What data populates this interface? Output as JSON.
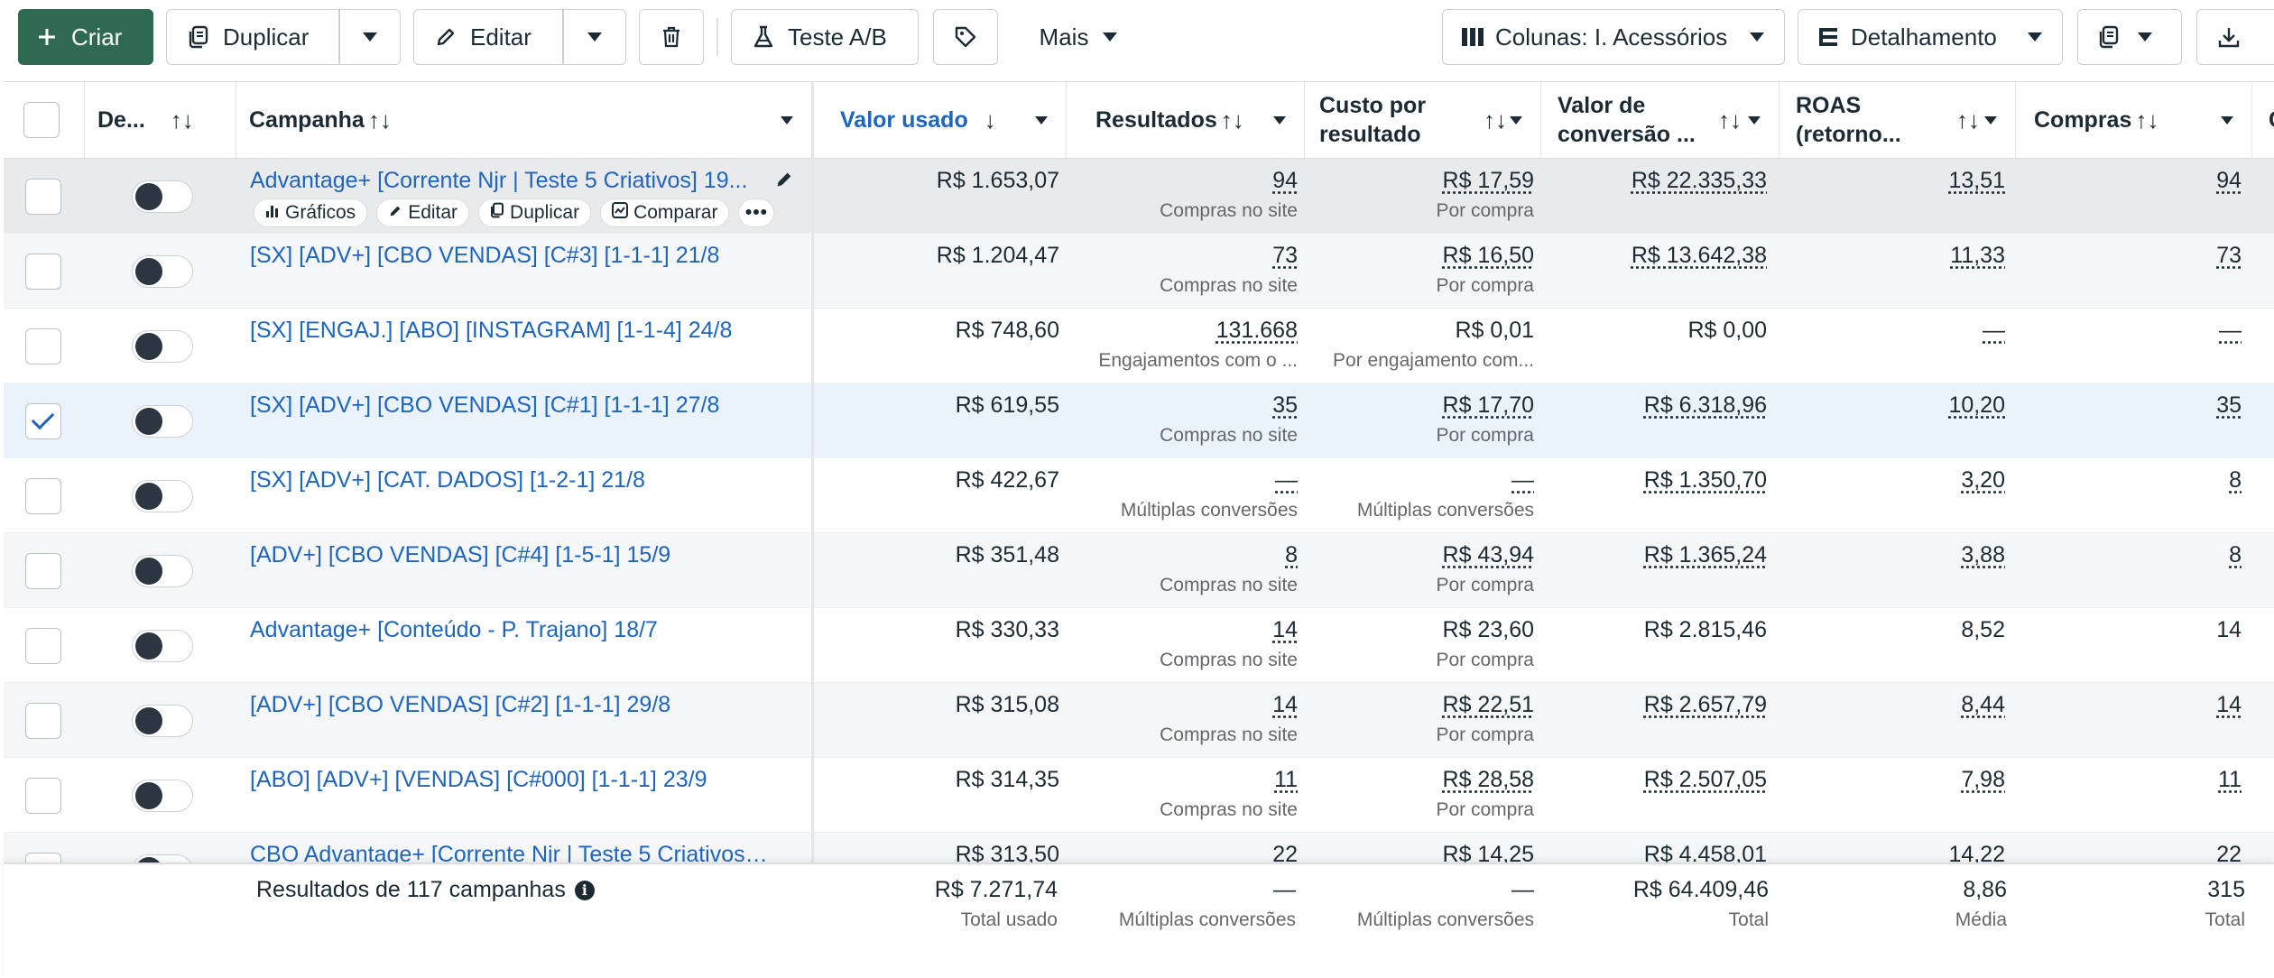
{
  "toolbar": {
    "create_label": "Criar",
    "duplicate_label": "Duplicar",
    "edit_label": "Editar",
    "ab_test_label": "Teste A/B",
    "more_label": "Mais",
    "columns_label": "Colunas: I. Acessórios",
    "breakdown_label": "Detalhamento"
  },
  "columns": {
    "delivery": "De...",
    "campaign": "Campanha",
    "amount_spent": "Valor usado",
    "results": "Resultados",
    "cost_per_result_1": "Custo por",
    "cost_per_result_2": "resultado",
    "conv_value_1": "Valor de",
    "conv_value_2": "conversão ...",
    "roas_1": "ROAS",
    "roas_2": "(retorno...",
    "purchases": "Compras",
    "next_partial": "C"
  },
  "row_actions": {
    "charts": "Gráficos",
    "edit": "Editar",
    "duplicate": "Duplicar",
    "compare": "Comparar"
  },
  "rows": [
    {
      "name": "Advantage+ [Corrente Njr | Teste 5 Criativos] 19...",
      "spent": "R$ 1.653,07",
      "results": "94",
      "results_sub": "Compras no site",
      "cpr": "R$ 17,59",
      "cpr_sub": "Por compra",
      "conv": "R$ 22.335,33",
      "roas": "13,51",
      "purchases": "94"
    },
    {
      "name": "[SX] [ADV+] [CBO VENDAS] [C#3] [1-1-1] 21/8",
      "spent": "R$ 1.204,47",
      "results": "73",
      "results_sub": "Compras no site",
      "cpr": "R$ 16,50",
      "cpr_sub": "Por compra",
      "conv": "R$ 13.642,38",
      "roas": "11,33",
      "purchases": "73"
    },
    {
      "name": "[SX] [ENGAJ.] [ABO] [INSTAGRAM] [1-1-4] 24/8",
      "spent": "R$ 748,60",
      "results": "131.668",
      "results_sub": "Engajamentos com o ...",
      "cpr": "R$ 0,01",
      "cpr_sub": "Por engajamento com...",
      "conv": "R$ 0,00",
      "roas": "—",
      "purchases": "—"
    },
    {
      "name": "[SX] [ADV+] [CBO VENDAS] [C#1] [1-1-1] 27/8",
      "spent": "R$ 619,55",
      "results": "35",
      "results_sub": "Compras no site",
      "cpr": "R$ 17,70",
      "cpr_sub": "Por compra",
      "conv": "R$ 6.318,96",
      "roas": "10,20",
      "purchases": "35"
    },
    {
      "name": "[SX] [ADV+] [CAT. DADOS] [1-2-1] 21/8",
      "spent": "R$ 422,67",
      "results": "—",
      "results_sub": "Múltiplas conversões",
      "cpr": "—",
      "cpr_sub": "Múltiplas conversões",
      "conv": "R$ 1.350,70",
      "roas": "3,20",
      "purchases": "8"
    },
    {
      "name": "[ADV+] [CBO VENDAS] [C#4] [1-5-1] 15/9",
      "spent": "R$ 351,48",
      "results": "8",
      "results_sub": "Compras no site",
      "cpr": "R$ 43,94",
      "cpr_sub": "Por compra",
      "conv": "R$ 1.365,24",
      "roas": "3,88",
      "purchases": "8"
    },
    {
      "name": "Advantage+ [Conteúdo - P. Trajano] 18/7",
      "spent": "R$ 330,33",
      "results": "14",
      "results_sub": "Compras no site",
      "cpr": "R$ 23,60",
      "cpr_sub": "Por compra",
      "conv": "R$ 2.815,46",
      "roas": "8,52",
      "purchases": "14"
    },
    {
      "name": "[ADV+] [CBO VENDAS] [C#2] [1-1-1] 29/8",
      "spent": "R$ 315,08",
      "results": "14",
      "results_sub": "Compras no site",
      "cpr": "R$ 22,51",
      "cpr_sub": "Por compra",
      "conv": "R$ 2.657,79",
      "roas": "8,44",
      "purchases": "14"
    },
    {
      "name": "[ABO] [ADV+] [VENDAS] [C#000] [1-1-1] 23/9",
      "spent": "R$ 314,35",
      "results": "11",
      "results_sub": "Compras no site",
      "cpr": "R$ 28,58",
      "cpr_sub": "Por compra",
      "conv": "R$ 2.507,05",
      "roas": "7,98",
      "purchases": "11"
    },
    {
      "name": "CBO Advantage+ [Corrente Njr | Teste 5 Criativos] ...",
      "spent": "R$ 313,50",
      "results": "22",
      "results_sub": "",
      "cpr": "R$ 14,25",
      "cpr_sub": "",
      "conv": "R$ 4.458,01",
      "roas": "14,22",
      "purchases": "22"
    }
  ],
  "footer": {
    "label": "Resultados de 117 campanhas",
    "spent": "R$ 7.271,74",
    "spent_sub": "Total usado",
    "results": "—",
    "results_sub": "Múltiplas conversões",
    "cpr": "—",
    "cpr_sub": "Múltiplas conversões",
    "conv": "R$ 64.409,46",
    "conv_sub": "Total",
    "roas": "8,86",
    "roas_sub": "Média",
    "purchases": "315",
    "purchases_sub": "Total"
  },
  "colors": {
    "primary": "#2d6a4f",
    "link": "#1d65c1",
    "selected_row": "#eaf3fc"
  }
}
